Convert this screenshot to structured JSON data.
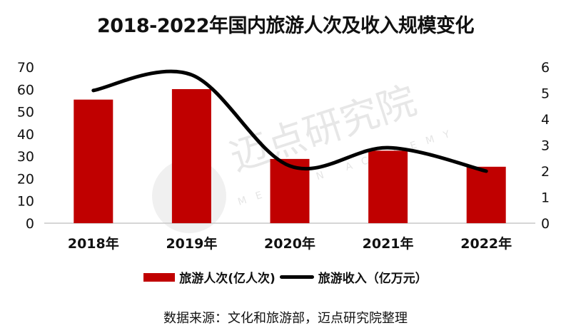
{
  "title": "2018-2022年国内旅游人次及收入规模变化",
  "chart_data": {
    "type": "bar+line",
    "title": "2018-2022年国内旅游人次及收入规模变化",
    "categories": [
      "2018年",
      "2019年",
      "2020年",
      "2021年",
      "2022年"
    ],
    "series": [
      {
        "name": "旅游人次(亿人次)",
        "type": "bar",
        "axis": "left",
        "color": "#c00000",
        "values": [
          55.4,
          60.1,
          28.8,
          32.5,
          25.3
        ]
      },
      {
        "name": "旅游收入（亿万元）",
        "type": "line",
        "axis": "right",
        "color": "#000000",
        "smooth": true,
        "values": [
          5.1,
          5.7,
          2.2,
          2.9,
          2.0
        ]
      }
    ],
    "y_left": {
      "ticks": [
        "0",
        "10",
        "20",
        "30",
        "40",
        "50",
        "60",
        "70"
      ],
      "ylim": [
        0,
        70
      ]
    },
    "y_right": {
      "ticks": [
        "0",
        "1",
        "2",
        "3",
        "4",
        "5",
        "6"
      ],
      "ylim": [
        0,
        6
      ]
    },
    "grid": false,
    "legend_position": "bottom"
  },
  "legend": {
    "bar_label": "旅游人次(亿人次)",
    "line_label": "旅游收入（亿万元）"
  },
  "source": "数据来源：文化和旅游部，迈点研究院整理",
  "watermark": {
    "cn": "迈点研究院",
    "en": "MEADIN ACADEMY"
  }
}
